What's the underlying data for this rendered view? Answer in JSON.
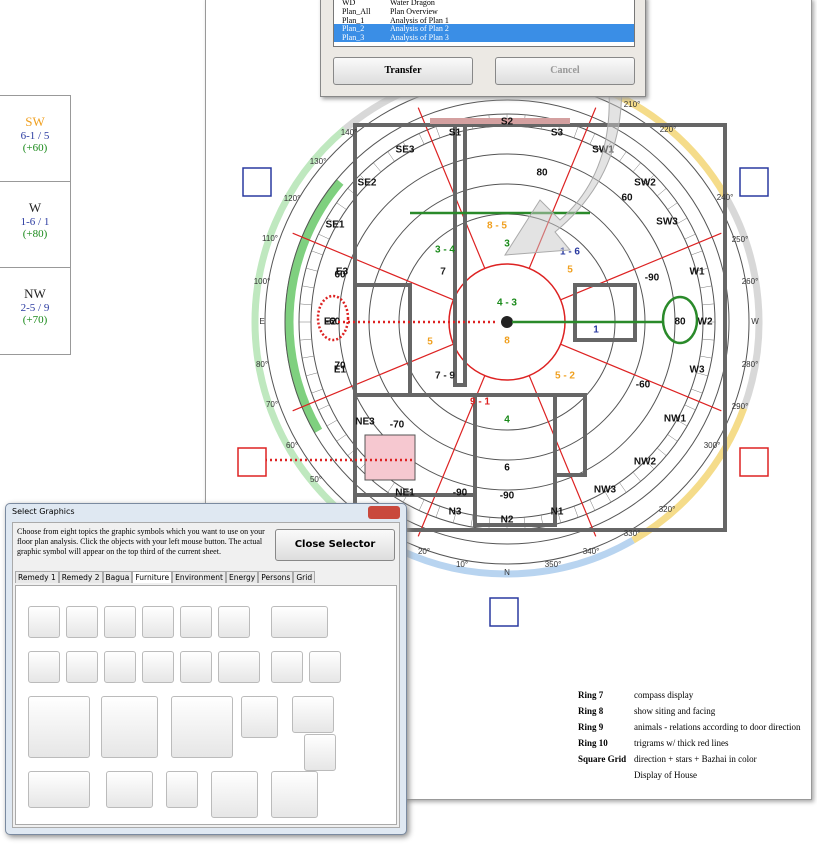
{
  "left_panel": [
    {
      "direction": "SW",
      "stars": "6-1 / 5",
      "score": "(+60)"
    },
    {
      "direction": "W",
      "stars": "1-6 / 1",
      "score": "(+80)"
    },
    {
      "direction": "NW",
      "stars": "2-5 / 9",
      "score": "(+70)"
    }
  ],
  "plan_dialog": {
    "rows": [
      {
        "code": "WD",
        "name": "Water Dragon",
        "selected": false
      },
      {
        "code": "Plan_All",
        "name": "Plan Overview",
        "selected": false
      },
      {
        "code": "Plan_1",
        "name": "Analysis of Plan 1",
        "selected": false
      },
      {
        "code": "Plan_2",
        "name": "Analysis of Plan 2",
        "selected": true
      },
      {
        "code": "Plan_3",
        "name": "Analysis of Plan 3",
        "selected": true
      }
    ],
    "buttons": [
      "Transfer",
      "Cancel"
    ]
  },
  "compass": {
    "degree_labels": [
      "140°",
      "130°",
      "120°",
      "110°",
      "100°",
      "E",
      "80°",
      "70°",
      "60°",
      "50°",
      "20°",
      "10°",
      "N",
      "350°",
      "340°",
      "320°",
      "300°",
      "290°",
      "280°",
      "W",
      "260°",
      "250°",
      "240°",
      "220°",
      "210°",
      "330°"
    ],
    "sector_labels": [
      "S1",
      "S2",
      "S3",
      "SW1",
      "SW2",
      "SW3",
      "W1",
      "W2",
      "W3",
      "NW1",
      "NW2",
      "NW3",
      "N1",
      "N2",
      "N3",
      "NE1",
      "NE3",
      "E1",
      "E2",
      "E3",
      "SE1",
      "SE2",
      "SE3"
    ],
    "star_numbers": [
      "4 - 3",
      "8",
      "3 - 4",
      "7",
      "8 - 5",
      "3",
      "1 - 6",
      "5",
      "5",
      "7 - 9",
      "9 - 1",
      "4",
      "5 - 2",
      "6",
      "1",
      "-60",
      "80",
      "-70",
      "70",
      "60",
      "-90",
      "-90",
      "80",
      "60",
      "-60",
      "-90"
    ]
  },
  "legend": [
    {
      "ring": "Ring 7",
      "text": "compass display"
    },
    {
      "ring": "Ring 8",
      "text": "show siting and facing"
    },
    {
      "ring": "Ring 9",
      "text": "animals - relations according to door direction"
    },
    {
      "ring": "Ring 10",
      "text": "trigrams w/ thick red lines"
    },
    {
      "ring": "Square Grid",
      "text": "direction + stars + Bazhai in color"
    },
    {
      "ring": null,
      "text": "Display of House"
    }
  ],
  "select_dialog": {
    "title": "Select Graphics",
    "description": "Choose from eight topics the graphic symbols which you want to use on your floor plan analysis. Click the objects with your left mouse button. The actual graphic symbol will appear on the top third of the current sheet.",
    "close_button": "Close Selector",
    "tabs": [
      "Remedy 1",
      "Remedy 2",
      "Bagua",
      "Furniture",
      "Environment",
      "Energy",
      "Persons",
      "Grid"
    ],
    "active_tab": 3
  }
}
